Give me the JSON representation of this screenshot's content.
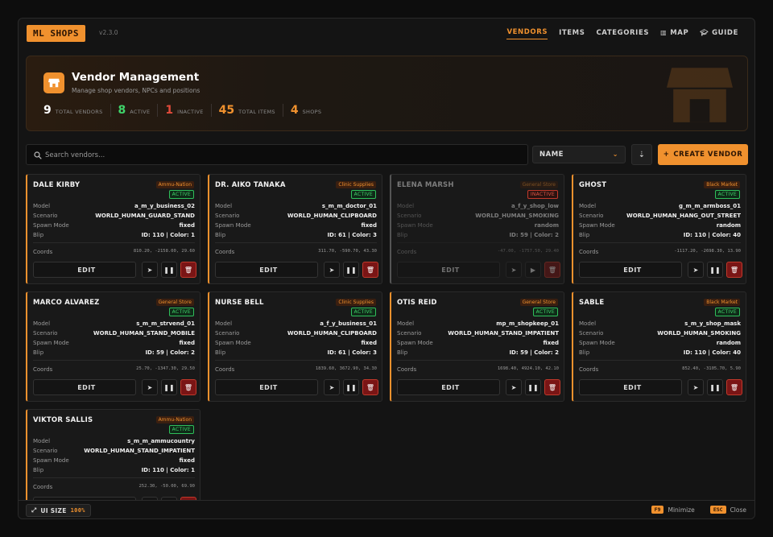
{
  "app": {
    "logo": "ML SHOPS",
    "version": "v2.3.0"
  },
  "nav": [
    {
      "label": "VENDORS",
      "icon": "",
      "active": true
    },
    {
      "label": "ITEMS",
      "icon": "",
      "active": false
    },
    {
      "label": "CATEGORIES",
      "icon": "",
      "active": false
    },
    {
      "label": "MAP",
      "icon": "map-icon",
      "active": false
    },
    {
      "label": "GUIDE",
      "icon": "graduation-cap-icon",
      "active": false
    }
  ],
  "hero": {
    "title": "Vendor Management",
    "subtitle": "Manage shop vendors, NPCs and positions",
    "stats": [
      {
        "value": "9",
        "label": "TOTAL VENDORS",
        "color": "#ffffff"
      },
      {
        "value": "8",
        "label": "ACTIVE",
        "color": "#3fd46a"
      },
      {
        "value": "1",
        "label": "INACTIVE",
        "color": "#e04a3a"
      },
      {
        "value": "45",
        "label": "TOTAL ITEMS",
        "color": "#f0912e"
      },
      {
        "value": "4",
        "label": "SHOPS",
        "color": "#f0912e"
      }
    ]
  },
  "toolbar": {
    "search_placeholder": "Search vendors...",
    "sort_value": "NAME",
    "create_label": "CREATE VENDOR"
  },
  "labels": {
    "model": "Model",
    "scenario": "Scenario",
    "spawn": "Spawn Mode",
    "blip": "Blip",
    "coords": "Coords",
    "edit": "EDIT"
  },
  "vendors": [
    {
      "name": "DALE KIRBY",
      "category": "Ammu-Nation",
      "status": "ACTIVE",
      "active": true,
      "model": "a_m_y_business_02",
      "scenario": "WORLD_HUMAN_GUARD_STAND",
      "spawn": "fixed",
      "blip": "ID: 110 | Color: 1",
      "coords": "810.20, -2158.00, 29.60"
    },
    {
      "name": "DR. AIKO TANAKA",
      "category": "Clinic Supplies",
      "status": "ACTIVE",
      "active": true,
      "model": "s_m_m_doctor_01",
      "scenario": "WORLD_HUMAN_CLIPBOARD",
      "spawn": "fixed",
      "blip": "ID: 61 | Color: 3",
      "coords": "311.70, -590.70, 43.30"
    },
    {
      "name": "ELENA MARSH",
      "category": "General Store",
      "status": "INACTIVE",
      "active": false,
      "model": "a_f_y_shop_low",
      "scenario": "WORLD_HUMAN_SMOKING",
      "spawn": "random",
      "blip": "ID: 59 | Color: 2",
      "coords": "-47.00, -1757.50, 29.40"
    },
    {
      "name": "GHOST",
      "category": "Black Market",
      "status": "ACTIVE",
      "active": true,
      "model": "g_m_m_armboss_01",
      "scenario": "WORLD_HUMAN_HANG_OUT_STREET",
      "spawn": "random",
      "blip": "ID: 110 | Color: 40",
      "coords": "-1117.20, -2698.30, 13.90"
    },
    {
      "name": "MARCO ALVAREZ",
      "category": "General Store",
      "status": "ACTIVE",
      "active": true,
      "model": "s_m_m_strvend_01",
      "scenario": "WORLD_HUMAN_STAND_MOBILE",
      "spawn": "fixed",
      "blip": "ID: 59 | Color: 2",
      "coords": "25.70, -1347.30, 29.50"
    },
    {
      "name": "NURSE BELL",
      "category": "Clinic Supplies",
      "status": "ACTIVE",
      "active": true,
      "model": "a_f_y_business_01",
      "scenario": "WORLD_HUMAN_CLIPBOARD",
      "spawn": "fixed",
      "blip": "ID: 61 | Color: 3",
      "coords": "1839.60, 3672.90, 34.30"
    },
    {
      "name": "OTIS REID",
      "category": "General Store",
      "status": "ACTIVE",
      "active": true,
      "model": "mp_m_shopkeep_01",
      "scenario": "WORLD_HUMAN_STAND_IMPATIENT",
      "spawn": "fixed",
      "blip": "ID: 59 | Color: 2",
      "coords": "1698.40, 4924.10, 42.10"
    },
    {
      "name": "SABLE",
      "category": "Black Market",
      "status": "ACTIVE",
      "active": true,
      "model": "s_m_y_shop_mask",
      "scenario": "WORLD_HUMAN_SMOKING",
      "spawn": "random",
      "blip": "ID: 110 | Color: 40",
      "coords": "852.40, -3105.70, 5.90"
    },
    {
      "name": "VIKTOR SALLIS",
      "category": "Ammu-Nation",
      "status": "ACTIVE",
      "active": true,
      "model": "s_m_m_ammucountry",
      "scenario": "WORLD_HUMAN_STAND_IMPATIENT",
      "spawn": "fixed",
      "blip": "ID: 110 | Color: 1",
      "coords": "252.30, -50.00, 69.90"
    }
  ],
  "footer": {
    "ui_size_label": "UI SIZE",
    "ui_size_value": "100%",
    "hints": [
      {
        "key": "F9",
        "label": "Minimize"
      },
      {
        "key": "ESC",
        "label": "Close"
      }
    ]
  },
  "colors": {
    "accent": "#f0912e",
    "active": "#3fd46a",
    "inactive": "#e04a3a",
    "danger": "#c0392b"
  }
}
